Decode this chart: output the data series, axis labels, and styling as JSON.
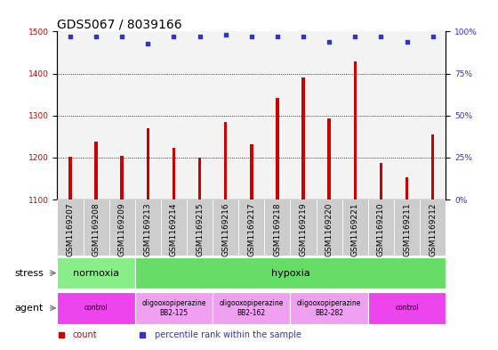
{
  "title": "GDS5067 / 8039166",
  "categories": [
    "GSM1169207",
    "GSM1169208",
    "GSM1169209",
    "GSM1169213",
    "GSM1169214",
    "GSM1169215",
    "GSM1169216",
    "GSM1169217",
    "GSM1169218",
    "GSM1169219",
    "GSM1169220",
    "GSM1169221",
    "GSM1169210",
    "GSM1169211",
    "GSM1169212"
  ],
  "counts": [
    1202,
    1237,
    1203,
    1270,
    1223,
    1200,
    1285,
    1232,
    1342,
    1390,
    1294,
    1428,
    1188,
    1152,
    1255
  ],
  "percentile_ranks": [
    97,
    97,
    97,
    93,
    97,
    97,
    98,
    97,
    97,
    97,
    94,
    97,
    97,
    94,
    97
  ],
  "ylim_left": [
    1100,
    1500
  ],
  "ylim_right": [
    0,
    100
  ],
  "yticks_left": [
    1100,
    1200,
    1300,
    1400,
    1500
  ],
  "yticks_right": [
    0,
    25,
    50,
    75,
    100
  ],
  "bar_color": "#cc0000",
  "dot_color": "#3333cc",
  "bar_width": 0.12,
  "stress_groups": [
    {
      "label": "normoxia",
      "start": 0,
      "end": 3,
      "color": "#88ee88"
    },
    {
      "label": "hypoxia",
      "start": 3,
      "end": 15,
      "color": "#66dd66"
    }
  ],
  "agent_groups": [
    {
      "text": "control",
      "start": 0,
      "end": 3,
      "color": "#ee44ee"
    },
    {
      "text": "oligooxopiperazine\nBB2-125",
      "start": 3,
      "end": 6,
      "color": "#f0a0f0"
    },
    {
      "text": "oligooxopiperazine\nBB2-162",
      "start": 6,
      "end": 9,
      "color": "#f0a0f0"
    },
    {
      "text": "oligooxopiperazine\nBB2-282",
      "start": 9,
      "end": 12,
      "color": "#f0a0f0"
    },
    {
      "text": "control",
      "start": 12,
      "end": 15,
      "color": "#ee44ee"
    }
  ],
  "left_axis_color": "#cc0000",
  "right_axis_color": "#3333cc",
  "grid_dotted_at": [
    1200,
    1300,
    1400
  ],
  "tick_label_bg": "#cccccc",
  "title_fontsize": 10,
  "tick_fontsize": 6.5,
  "label_fontsize": 8,
  "legend_fontsize": 7
}
